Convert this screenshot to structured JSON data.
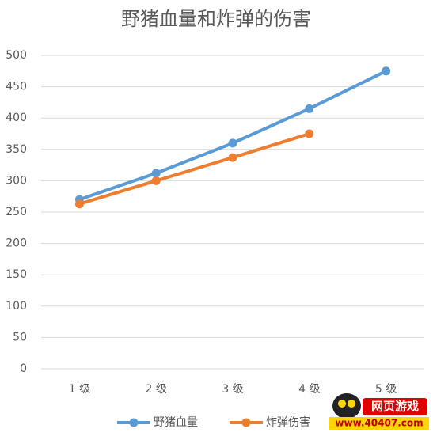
{
  "chart_data": {
    "type": "line",
    "title": "野猪血量和炸弹的伤害",
    "categories": [
      "1 级",
      "2 级",
      "3 级",
      "4 级",
      "5 级"
    ],
    "series": [
      {
        "name": "野猪血量",
        "color": "#5b9bd5",
        "values": [
          270,
          312,
          360,
          415,
          475
        ]
      },
      {
        "name": "炸弹伤害",
        "color": "#ed7d31",
        "values": [
          263,
          300,
          337,
          375,
          null
        ]
      }
    ],
    "ylim": [
      0,
      500
    ],
    "yticks": [
      0,
      50,
      100,
      150,
      200,
      250,
      300,
      350,
      400,
      450,
      500
    ],
    "grid": true,
    "legend": "bottom"
  },
  "watermark": {
    "title": "网页游戏",
    "url": "www.40407.com"
  }
}
